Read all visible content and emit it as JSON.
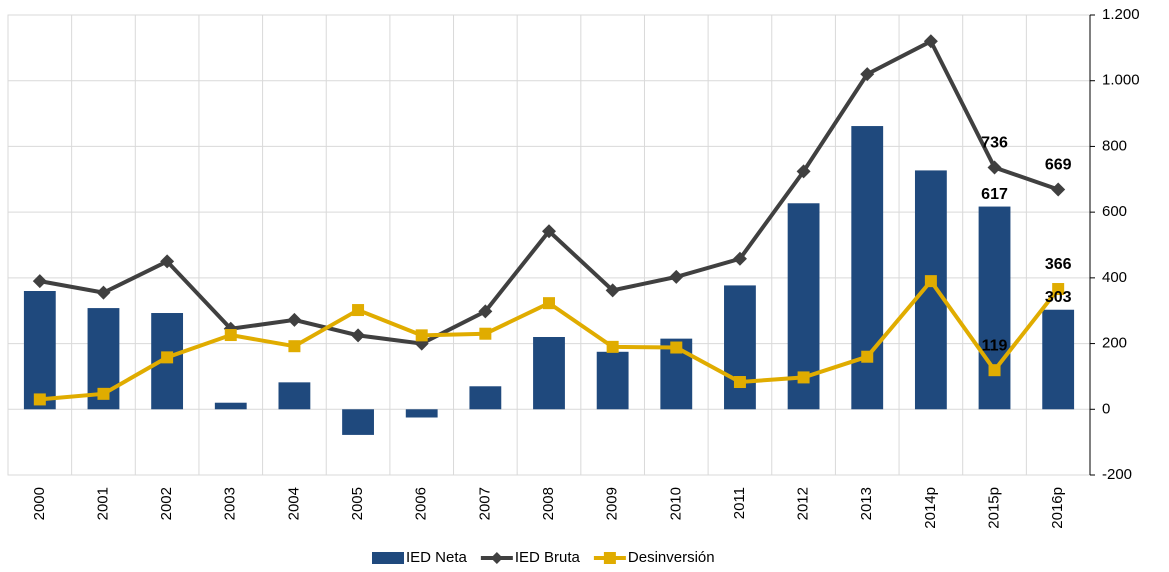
{
  "chart_data": {
    "type": "bar_line",
    "categories": [
      "2000",
      "2001",
      "2002",
      "2003",
      "2004",
      "2005",
      "2006",
      "2007",
      "2008",
      "2009",
      "2010",
      "2011",
      "2012",
      "2013",
      "2014p",
      "2015p",
      "2016p"
    ],
    "series": [
      {
        "name": "IED Neta",
        "type": "bar",
        "color": "#1f497d",
        "values": [
          360,
          308,
          293,
          20,
          82,
          -78,
          -25,
          70,
          220,
          175,
          215,
          377,
          627,
          862,
          727,
          617,
          303
        ],
        "data_labels": [
          15,
          16
        ]
      },
      {
        "name": "IED Bruta",
        "type": "line",
        "marker": "diamond",
        "color": "#404040",
        "values": [
          390,
          355,
          450,
          245,
          272,
          225,
          200,
          298,
          542,
          362,
          403,
          458,
          724,
          1020,
          1120,
          736,
          669
        ],
        "data_labels": [
          15,
          16
        ]
      },
      {
        "name": "Desinversión",
        "type": "line",
        "marker": "square",
        "color": "#e0ac00",
        "values": [
          30,
          47,
          158,
          226,
          192,
          302,
          225,
          230,
          323,
          190,
          188,
          83,
          97,
          160,
          390,
          119,
          366
        ],
        "data_labels": [
          15,
          16
        ]
      }
    ],
    "ylim": [
      -200,
      1200
    ],
    "yticks": [
      -200,
      0,
      200,
      400,
      600,
      800,
      {
        "value": 1000,
        "label": "1.000"
      },
      {
        "value": 1200,
        "label": "1.200"
      }
    ],
    "y_axis_side": "right",
    "grid": true,
    "legend": "bottom"
  }
}
